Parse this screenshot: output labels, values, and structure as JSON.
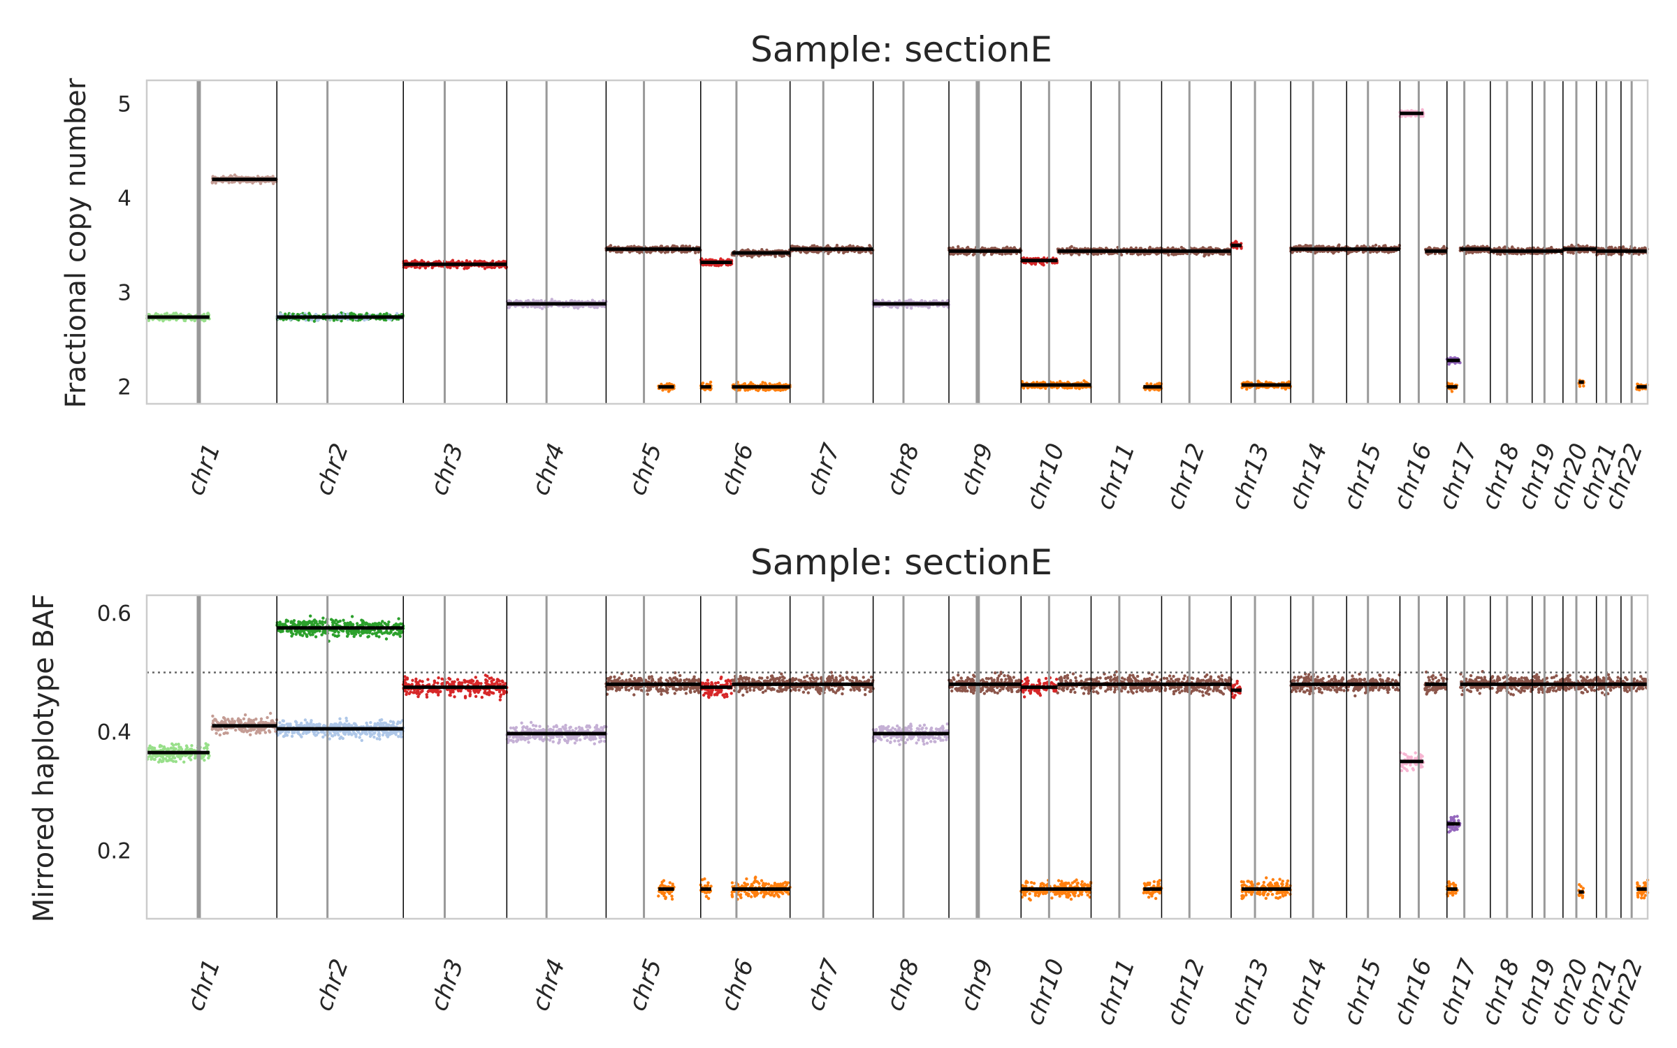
{
  "chart_data": [
    {
      "type": "scatter",
      "title": "Sample: sectionE",
      "ylabel": "Fractional copy number",
      "xlabel": "",
      "ylim": [
        1.82,
        5.25
      ],
      "yticks": [
        2,
        3,
        4,
        5
      ],
      "grid": false,
      "legend": "none",
      "chromosomes": [
        "chr1",
        "chr2",
        "chr3",
        "chr4",
        "chr5",
        "chr6",
        "chr7",
        "chr8",
        "chr9",
        "chr10",
        "chr11",
        "chr12",
        "chr13",
        "chr14",
        "chr15",
        "chr16",
        "chr17",
        "chr18",
        "chr19",
        "chr20",
        "chr21",
        "chr22"
      ],
      "chrom_sizes_mb": [
        249,
        242,
        198,
        190,
        181,
        171,
        159,
        145,
        138,
        134,
        135,
        133,
        114,
        107,
        102,
        90,
        83,
        80,
        59,
        64,
        47,
        51
      ],
      "segments": [
        {
          "chrom": "chr1",
          "start": 0,
          "end": 120,
          "value": 2.74,
          "color": "#98df8a"
        },
        {
          "chrom": "chr1",
          "start": 125,
          "end": 249,
          "value": 4.2,
          "color": "#c49c94"
        },
        {
          "chrom": "chr2",
          "start": 0,
          "end": 242,
          "value": 2.74,
          "color": "#2ca02c",
          "alt_color": "#aec7e8"
        },
        {
          "chrom": "chr3",
          "start": 0,
          "end": 198,
          "value": 3.3,
          "color": "#d62728"
        },
        {
          "chrom": "chr4",
          "start": 0,
          "end": 190,
          "value": 2.88,
          "color": "#c5b0d5"
        },
        {
          "chrom": "chr5",
          "start": 0,
          "end": 181,
          "value": 3.46,
          "color": "#8c564b"
        },
        {
          "chrom": "chr6",
          "start": 0,
          "end": 60,
          "value": 3.32,
          "color": "#d62728"
        },
        {
          "chrom": "chr6",
          "start": 60,
          "end": 171,
          "value": 3.42,
          "color": "#8c564b"
        },
        {
          "chrom": "chr7",
          "start": 0,
          "end": 159,
          "value": 3.46,
          "color": "#8c564b"
        },
        {
          "chrom": "chr8",
          "start": 0,
          "end": 145,
          "value": 2.88,
          "color": "#c5b0d5"
        },
        {
          "chrom": "chr9",
          "start": 0,
          "end": 138,
          "value": 3.44,
          "color": "#8c564b"
        },
        {
          "chrom": "chr10",
          "start": 0,
          "end": 70,
          "value": 3.34,
          "color": "#d62728"
        },
        {
          "chrom": "chr10",
          "start": 70,
          "end": 134,
          "value": 3.44,
          "color": "#8c564b"
        },
        {
          "chrom": "chr11",
          "start": 0,
          "end": 135,
          "value": 3.44,
          "color": "#8c564b"
        },
        {
          "chrom": "chr12",
          "start": 0,
          "end": 133,
          "value": 3.44,
          "color": "#8c564b"
        },
        {
          "chrom": "chr13",
          "start": 0,
          "end": 20,
          "value": 3.5,
          "color": "#d62728"
        },
        {
          "chrom": "chr14",
          "start": 0,
          "end": 107,
          "value": 3.46,
          "color": "#8c564b"
        },
        {
          "chrom": "chr15",
          "start": 0,
          "end": 102,
          "value": 3.46,
          "color": "#8c564b"
        },
        {
          "chrom": "chr16",
          "start": 0,
          "end": 45,
          "value": 4.9,
          "color": "#f7b6d2"
        },
        {
          "chrom": "chr16",
          "start": 48,
          "end": 90,
          "value": 3.44,
          "color": "#8c564b"
        },
        {
          "chrom": "chr17",
          "start": 0,
          "end": 25,
          "value": 2.28,
          "color": "#9467bd"
        },
        {
          "chrom": "chr17",
          "start": 25,
          "end": 83,
          "value": 3.46,
          "color": "#8c564b"
        },
        {
          "chrom": "chr18",
          "start": 0,
          "end": 80,
          "value": 3.44,
          "color": "#8c564b"
        },
        {
          "chrom": "chr19",
          "start": 0,
          "end": 59,
          "value": 3.44,
          "color": "#8c564b"
        },
        {
          "chrom": "chr20",
          "start": 0,
          "end": 64,
          "value": 3.46,
          "color": "#8c564b"
        },
        {
          "chrom": "chr21",
          "start": 0,
          "end": 47,
          "value": 3.44,
          "color": "#8c564b"
        },
        {
          "chrom": "chr22",
          "start": 0,
          "end": 51,
          "value": 3.44,
          "color": "#8c564b"
        }
      ],
      "minor_segments": [
        {
          "chrom": "chr5",
          "start": 100,
          "end": 130,
          "value": 2.0,
          "color": "#ff7f0e"
        },
        {
          "chrom": "chr6",
          "start": 0,
          "end": 20,
          "value": 2.0,
          "color": "#ff7f0e"
        },
        {
          "chrom": "chr6",
          "start": 60,
          "end": 171,
          "value": 2.0,
          "color": "#ff7f0e"
        },
        {
          "chrom": "chr10",
          "start": 0,
          "end": 134,
          "value": 2.02,
          "color": "#ff7f0e"
        },
        {
          "chrom": "chr11",
          "start": 100,
          "end": 135,
          "value": 2.0,
          "color": "#ff7f0e"
        },
        {
          "chrom": "chr13",
          "start": 20,
          "end": 114,
          "value": 2.02,
          "color": "#ff7f0e"
        },
        {
          "chrom": "chr17",
          "start": 0,
          "end": 20,
          "value": 2.0,
          "color": "#ff7f0e"
        },
        {
          "chrom": "chr20",
          "start": 30,
          "end": 40,
          "value": 2.05,
          "color": "#ff7f0e"
        },
        {
          "chrom": "chr22",
          "start": 30,
          "end": 51,
          "value": 2.0,
          "color": "#ff7f0e"
        }
      ]
    },
    {
      "type": "scatter",
      "title": "Sample: sectionE",
      "ylabel": "Mirrored haplotype BAF",
      "xlabel": "",
      "ylim": [
        0.085,
        0.63
      ],
      "yticks": [
        0.2,
        0.4,
        0.6
      ],
      "reference_line": 0.5,
      "grid": false,
      "legend": "none",
      "chromosomes": [
        "chr1",
        "chr2",
        "chr3",
        "chr4",
        "chr5",
        "chr6",
        "chr7",
        "chr8",
        "chr9",
        "chr10",
        "chr11",
        "chr12",
        "chr13",
        "chr14",
        "chr15",
        "chr16",
        "chr17",
        "chr18",
        "chr19",
        "chr20",
        "chr21",
        "chr22"
      ],
      "chrom_sizes_mb": [
        249,
        242,
        198,
        190,
        181,
        171,
        159,
        145,
        138,
        134,
        135,
        133,
        114,
        107,
        102,
        90,
        83,
        80,
        59,
        64,
        47,
        51
      ],
      "segments": [
        {
          "chrom": "chr1",
          "start": 0,
          "end": 120,
          "value": 0.365,
          "color": "#98df8a"
        },
        {
          "chrom": "chr1",
          "start": 125,
          "end": 249,
          "value": 0.41,
          "color": "#c49c94"
        },
        {
          "chrom": "chr2",
          "start": 0,
          "end": 242,
          "value": 0.575,
          "color": "#2ca02c"
        },
        {
          "chrom": "chr2",
          "start": 0,
          "end": 242,
          "value": 0.405,
          "color": "#aec7e8"
        },
        {
          "chrom": "chr3",
          "start": 0,
          "end": 198,
          "value": 0.475,
          "color": "#d62728"
        },
        {
          "chrom": "chr4",
          "start": 0,
          "end": 190,
          "value": 0.397,
          "color": "#c5b0d5"
        },
        {
          "chrom": "chr5",
          "start": 0,
          "end": 181,
          "value": 0.48,
          "color": "#8c564b"
        },
        {
          "chrom": "chr6",
          "start": 0,
          "end": 60,
          "value": 0.475,
          "color": "#d62728"
        },
        {
          "chrom": "chr6",
          "start": 60,
          "end": 171,
          "value": 0.48,
          "color": "#8c564b"
        },
        {
          "chrom": "chr7",
          "start": 0,
          "end": 159,
          "value": 0.48,
          "color": "#8c564b"
        },
        {
          "chrom": "chr8",
          "start": 0,
          "end": 145,
          "value": 0.397,
          "color": "#c5b0d5"
        },
        {
          "chrom": "chr9",
          "start": 0,
          "end": 138,
          "value": 0.48,
          "color": "#8c564b"
        },
        {
          "chrom": "chr10",
          "start": 0,
          "end": 70,
          "value": 0.475,
          "color": "#d62728"
        },
        {
          "chrom": "chr10",
          "start": 70,
          "end": 134,
          "value": 0.48,
          "color": "#8c564b"
        },
        {
          "chrom": "chr11",
          "start": 0,
          "end": 135,
          "value": 0.48,
          "color": "#8c564b"
        },
        {
          "chrom": "chr12",
          "start": 0,
          "end": 133,
          "value": 0.48,
          "color": "#8c564b"
        },
        {
          "chrom": "chr13",
          "start": 0,
          "end": 20,
          "value": 0.47,
          "color": "#d62728"
        },
        {
          "chrom": "chr14",
          "start": 0,
          "end": 107,
          "value": 0.48,
          "color": "#8c564b"
        },
        {
          "chrom": "chr15",
          "start": 0,
          "end": 102,
          "value": 0.48,
          "color": "#8c564b"
        },
        {
          "chrom": "chr16",
          "start": 0,
          "end": 45,
          "value": 0.35,
          "color": "#f7b6d2"
        },
        {
          "chrom": "chr16",
          "start": 48,
          "end": 90,
          "value": 0.48,
          "color": "#8c564b"
        },
        {
          "chrom": "chr17",
          "start": 0,
          "end": 25,
          "value": 0.245,
          "color": "#9467bd"
        },
        {
          "chrom": "chr17",
          "start": 25,
          "end": 83,
          "value": 0.48,
          "color": "#8c564b"
        },
        {
          "chrom": "chr18",
          "start": 0,
          "end": 80,
          "value": 0.48,
          "color": "#8c564b"
        },
        {
          "chrom": "chr19",
          "start": 0,
          "end": 59,
          "value": 0.48,
          "color": "#8c564b"
        },
        {
          "chrom": "chr20",
          "start": 0,
          "end": 64,
          "value": 0.48,
          "color": "#8c564b"
        },
        {
          "chrom": "chr21",
          "start": 0,
          "end": 47,
          "value": 0.48,
          "color": "#8c564b"
        },
        {
          "chrom": "chr22",
          "start": 0,
          "end": 51,
          "value": 0.48,
          "color": "#8c564b"
        }
      ],
      "minor_segments": [
        {
          "chrom": "chr5",
          "start": 100,
          "end": 130,
          "value": 0.135,
          "color": "#ff7f0e"
        },
        {
          "chrom": "chr6",
          "start": 0,
          "end": 20,
          "value": 0.135,
          "color": "#ff7f0e"
        },
        {
          "chrom": "chr6",
          "start": 60,
          "end": 171,
          "value": 0.135,
          "color": "#ff7f0e"
        },
        {
          "chrom": "chr10",
          "start": 0,
          "end": 134,
          "value": 0.135,
          "color": "#ff7f0e"
        },
        {
          "chrom": "chr11",
          "start": 100,
          "end": 135,
          "value": 0.135,
          "color": "#ff7f0e"
        },
        {
          "chrom": "chr13",
          "start": 20,
          "end": 114,
          "value": 0.135,
          "color": "#ff7f0e"
        },
        {
          "chrom": "chr17",
          "start": 0,
          "end": 20,
          "value": 0.135,
          "color": "#ff7f0e"
        },
        {
          "chrom": "chr20",
          "start": 30,
          "end": 40,
          "value": 0.13,
          "color": "#ff7f0e"
        },
        {
          "chrom": "chr22",
          "start": 30,
          "end": 51,
          "value": 0.135,
          "color": "#ff7f0e"
        }
      ]
    }
  ]
}
